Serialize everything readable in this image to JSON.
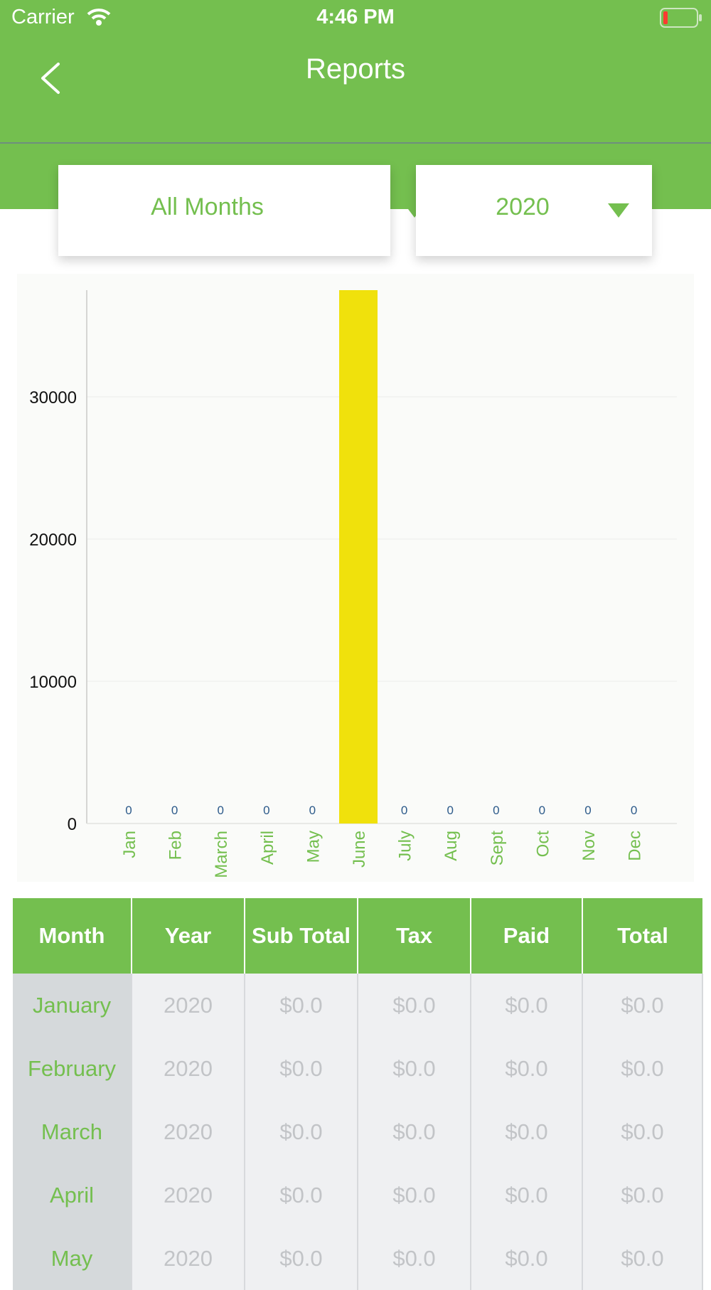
{
  "status_bar": {
    "carrier": "Carrier",
    "time": "4:46 PM",
    "wifi_icon": "wifi-icon",
    "battery_icon": "battery-low-icon"
  },
  "nav": {
    "title": "Reports",
    "back_icon": "chevron-left-icon"
  },
  "filters": {
    "month": "All Months",
    "year": "2020",
    "caret_icon": "caret-down-icon"
  },
  "colors": {
    "brand": "#74bf4f",
    "bar": "#f0e10c",
    "value_label": "#2c5a8a"
  },
  "chart_data": {
    "type": "bar",
    "categories": [
      "Jan",
      "Feb",
      "March",
      "April",
      "May",
      "June",
      "July",
      "Aug",
      "Sept",
      "Oct",
      "Nov",
      "Dec"
    ],
    "values": [
      0,
      0,
      0,
      0,
      0,
      37500,
      0,
      0,
      0,
      0,
      0,
      0
    ],
    "data_labels": [
      "0",
      "0",
      "0",
      "0",
      "0",
      "",
      "0",
      "0",
      "0",
      "0",
      "0",
      "0"
    ],
    "yticks": [
      0,
      10000,
      20000,
      30000
    ],
    "ylim": [
      0,
      37500
    ],
    "grid": true,
    "bar_color": "#f0e10c"
  },
  "table": {
    "headers": [
      "Month",
      "Year",
      "Sub Total",
      "Tax",
      "Paid",
      "Total"
    ],
    "rows": [
      [
        "January",
        "2020",
        "$0.0",
        "$0.0",
        "$0.0",
        "$0.0"
      ],
      [
        "February",
        "2020",
        "$0.0",
        "$0.0",
        "$0.0",
        "$0.0"
      ],
      [
        "March",
        "2020",
        "$0.0",
        "$0.0",
        "$0.0",
        "$0.0"
      ],
      [
        "April",
        "2020",
        "$0.0",
        "$0.0",
        "$0.0",
        "$0.0"
      ],
      [
        "May",
        "2020",
        "$0.0",
        "$0.0",
        "$0.0",
        "$0.0"
      ]
    ]
  }
}
